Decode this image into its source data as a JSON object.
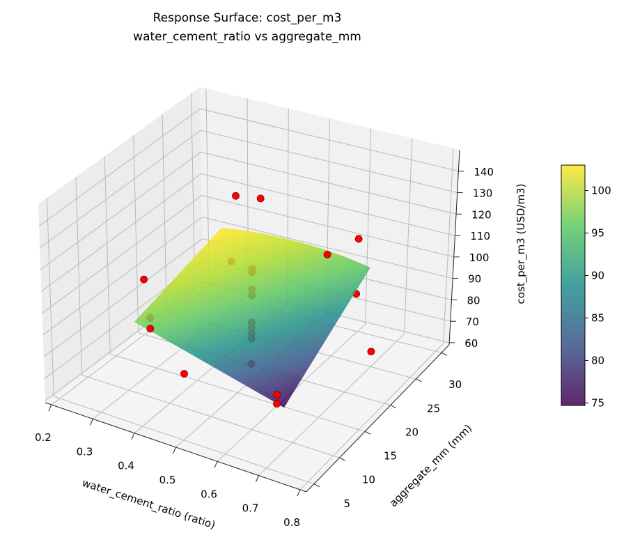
{
  "chart_data": {
    "type": "surface3d",
    "title": "Response Surface: cost_per_m3",
    "subtitle": "water_cement_ratio vs aggregate_mm",
    "xlabel": "water_cement_ratio (ratio)",
    "ylabel": "aggregate_mm (mm)",
    "zlabel": "cost_per_m3 (USD/m3)",
    "xlim": [
      0.185,
      0.815
    ],
    "ylim": [
      3.5,
      31.5
    ],
    "zlim": [
      59,
      150
    ],
    "x_ticks": [
      "0.2",
      "0.3",
      "0.4",
      "0.5",
      "0.6",
      "0.7",
      "0.8"
    ],
    "y_ticks": [
      "5",
      "10",
      "15",
      "20",
      "25",
      "30"
    ],
    "z_ticks": [
      "60",
      "70",
      "80",
      "90",
      "100",
      "110",
      "120",
      "130",
      "140"
    ],
    "grid": true,
    "surface": {
      "colormap": "viridis",
      "zmin": 74.7,
      "zmax": 103,
      "opacity": 0.85
    },
    "colorbar": {
      "ticks": [
        "75",
        "80",
        "85",
        "90",
        "95",
        "100"
      ],
      "range": [
        74.7,
        103
      ],
      "position": "right"
    },
    "points_color": "#ff0000",
    "points": [
      {
        "x": 0.36,
        "y": 25,
        "z": 121
      },
      {
        "x": 0.46,
        "y": 22,
        "z": 131
      },
      {
        "x": 0.52,
        "y": 30,
        "z": 91
      },
      {
        "x": 0.66,
        "y": 25,
        "z": 116
      },
      {
        "x": 0.34,
        "y": 10,
        "z": 112
      },
      {
        "x": 0.72,
        "y": 20,
        "z": 105
      },
      {
        "x": 0.42,
        "y": 5,
        "z": 104.5
      },
      {
        "x": 0.42,
        "y": 5,
        "z": 109.4
      },
      {
        "x": 0.5,
        "y": 5,
        "z": 89
      },
      {
        "x": 0.7,
        "y": 25,
        "z": 66
      },
      {
        "x": 0.72,
        "y": 5,
        "z": 89
      },
      {
        "x": 0.72,
        "y": 5,
        "z": 93
      },
      {
        "x": 0.45,
        "y": 17.5,
        "z": 111
      },
      {
        "x": 0.5,
        "y": 17.5,
        "z": 110.3
      },
      {
        "x": 0.5,
        "y": 17.5,
        "z": 108.7
      },
      {
        "x": 0.5,
        "y": 17.5,
        "z": 100.8
      },
      {
        "x": 0.5,
        "y": 17.5,
        "z": 98
      },
      {
        "x": 0.5,
        "y": 17.5,
        "z": 85.8
      },
      {
        "x": 0.5,
        "y": 17.5,
        "z": 83.3
      },
      {
        "x": 0.5,
        "y": 17.5,
        "z": 80.8
      },
      {
        "x": 0.5,
        "y": 17.5,
        "z": 78.3
      },
      {
        "x": 0.5,
        "y": 17.5,
        "z": 66.8
      }
    ]
  }
}
